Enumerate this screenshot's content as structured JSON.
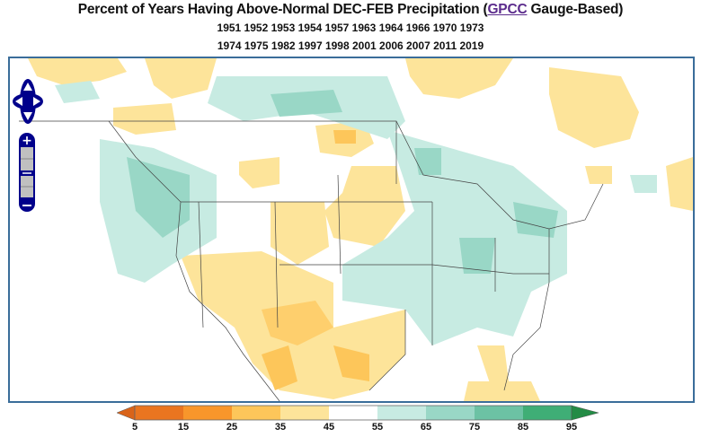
{
  "title": {
    "prefix": "Percent of Years Having Above-Normal DEC-FEB Precipitation (",
    "link": "GPCC",
    "suffix": " Gauge-Based)"
  },
  "years_line1": "1951 1952 1953 1954 1957 1963 1964 1966 1970 1973",
  "years_line2": "1974 1975 1982 1997 1998 2001 2006 2007 2011 2019",
  "map_controls": {
    "pan": [
      "pan-up",
      "pan-left",
      "pan-right",
      "pan-down"
    ],
    "zoom_in": "+",
    "zoom_out": "−"
  },
  "colorbar": {
    "ticks": [
      "5",
      "15",
      "25",
      "35",
      "45",
      "55",
      "65",
      "75",
      "85",
      "95"
    ],
    "colors": {
      "below_5": "#d9641a",
      "5_15": "#ea7520",
      "15_25": "#f8962b",
      "25_35": "#fdc65a",
      "35_45": "#fde49a",
      "45_55": "#ffffff",
      "55_65": "#c7ebe2",
      "65_75": "#99d7c6",
      "75_85": "#6cc2a4",
      "85_95": "#3fae76",
      "above_95": "#238b45"
    }
  },
  "colors": {
    "frame": "#3a6d9a",
    "nav": "#00008b",
    "dry_light": "#fde49a",
    "dry_mid": "#fdc65a",
    "wet_light": "#c7ebe2",
    "wet_mid": "#99d7c6",
    "wet_dark": "#6cc2a4"
  }
}
